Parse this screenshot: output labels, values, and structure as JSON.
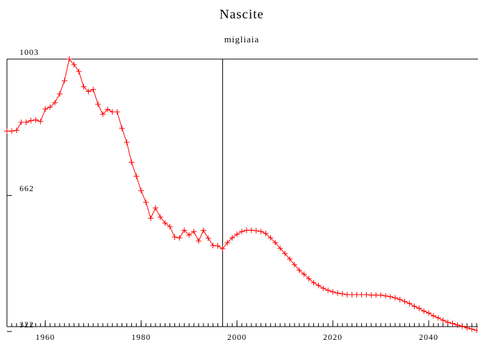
{
  "chart_data": {
    "type": "line",
    "title": "Nascite",
    "subtitle": "migliaia",
    "x": [
      1952,
      1953,
      1954,
      1955,
      1956,
      1957,
      1958,
      1959,
      1960,
      1961,
      1962,
      1963,
      1964,
      1965,
      1966,
      1967,
      1968,
      1969,
      1970,
      1971,
      1972,
      1973,
      1974,
      1975,
      1976,
      1977,
      1978,
      1979,
      1980,
      1981,
      1982,
      1983,
      1984,
      1985,
      1986,
      1987,
      1988,
      1989,
      1990,
      1991,
      1992,
      1993,
      1994,
      1995,
      1996,
      1997,
      1998,
      1999,
      2000,
      2001,
      2002,
      2003,
      2004,
      2005,
      2006,
      2007,
      2008,
      2009,
      2010,
      2011,
      2012,
      2013,
      2014,
      2015,
      2016,
      2017,
      2018,
      2019,
      2020,
      2021,
      2022,
      2023,
      2024,
      2025,
      2026,
      2027,
      2028,
      2029,
      2030,
      2031,
      2032,
      2033,
      2034,
      2035,
      2036,
      2037,
      2038,
      2039,
      2040,
      2041,
      2042,
      2043,
      2044,
      2045,
      2046,
      2047,
      2048,
      2049,
      2050
    ],
    "values": [
      823,
      823,
      825,
      845,
      845,
      849,
      851,
      847,
      878,
      883,
      894,
      916,
      949,
      1003,
      989,
      972,
      934,
      922,
      927,
      890,
      865,
      877,
      871,
      871,
      830,
      795,
      745,
      710,
      674,
      645,
      605,
      631,
      608,
      593,
      584,
      558,
      556,
      575,
      563,
      572,
      548,
      575,
      555,
      537,
      536,
      529,
      544,
      556,
      565,
      572,
      575,
      575,
      574,
      572,
      567,
      556,
      544,
      530,
      517,
      503,
      489,
      475,
      465,
      454,
      444,
      437,
      430,
      425,
      421,
      418,
      416,
      414,
      414,
      414,
      414,
      414,
      413,
      413,
      413,
      411,
      409,
      406,
      402,
      397,
      392,
      385,
      380,
      373,
      368,
      361,
      356,
      350,
      345,
      342,
      338,
      335,
      331,
      328,
      325
    ],
    "color": "#ff0000",
    "xlim": [
      1952,
      2050
    ],
    "xticks": [
      1960,
      1980,
      2000,
      2020,
      2040
    ],
    "ylim": [
      322,
      1003
    ],
    "yticks": [
      322,
      662,
      1003
    ],
    "vline": 1997
  }
}
